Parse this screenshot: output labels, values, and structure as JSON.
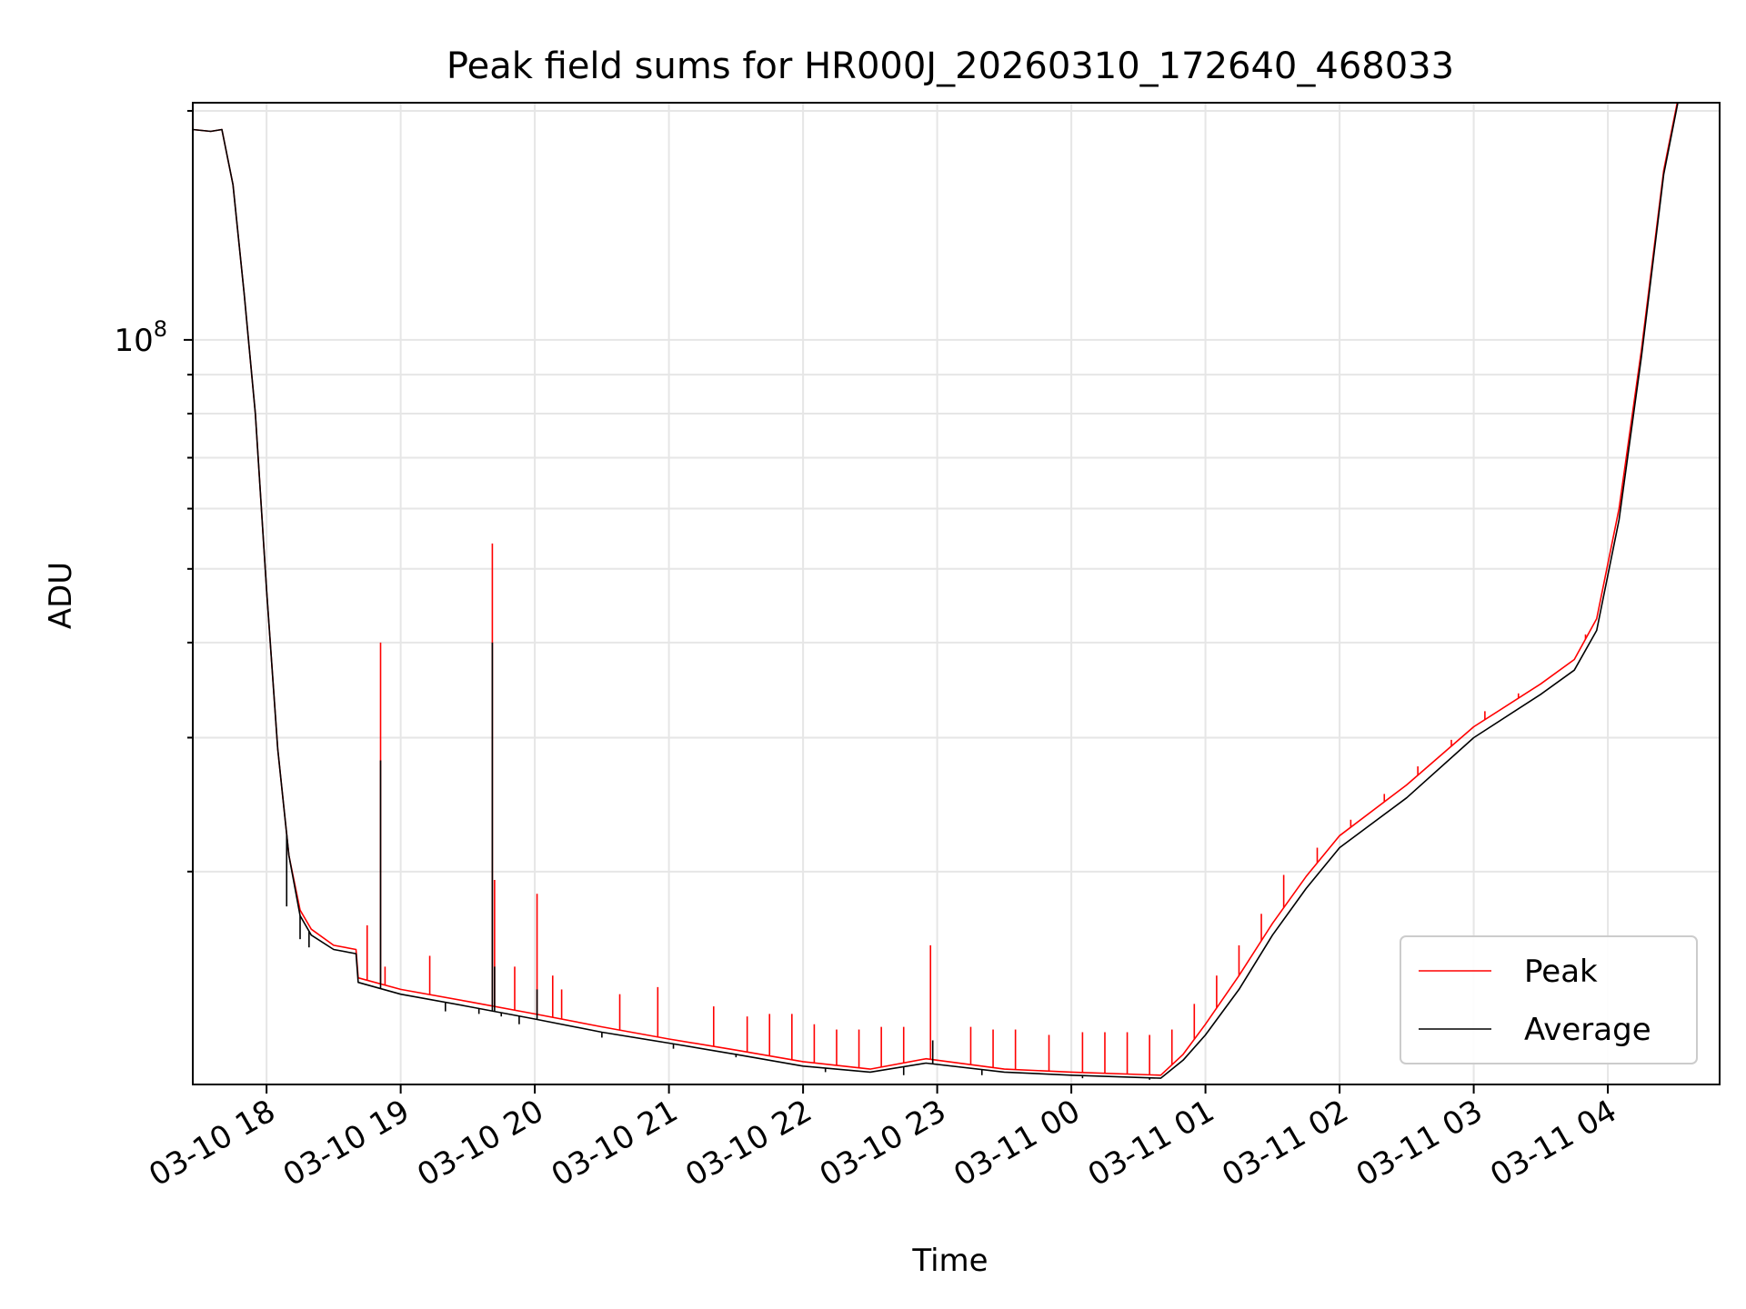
{
  "chart_data": {
    "type": "line",
    "title": "Peak field sums for HR000J_20260310_172640_468033",
    "xlabel": "Time",
    "ylabel": "ADU",
    "yscale": "log",
    "grid": true,
    "legend_position": "lower right",
    "x_ticks": [
      {
        "time": "2026-03-10 18:00",
        "label": "03-10 18"
      },
      {
        "time": "2026-03-10 19:00",
        "label": "03-10 19"
      },
      {
        "time": "2026-03-10 20:00",
        "label": "03-10 20"
      },
      {
        "time": "2026-03-10 21:00",
        "label": "03-10 21"
      },
      {
        "time": "2026-03-10 22:00",
        "label": "03-10 22"
      },
      {
        "time": "2026-03-10 23:00",
        "label": "03-10 23"
      },
      {
        "time": "2026-03-11 00:00",
        "label": "03-11 00"
      },
      {
        "time": "2026-03-11 01:00",
        "label": "03-11 01"
      },
      {
        "time": "2026-03-11 02:00",
        "label": "03-11 02"
      },
      {
        "time": "2026-03-11 03:00",
        "label": "03-11 03"
      },
      {
        "time": "2026-03-11 04:00",
        "label": "03-11 04"
      }
    ],
    "y_major_tick": {
      "value": 100000000,
      "base": "10",
      "exp": "8"
    },
    "xlim": [
      "2026-03-10 17:27",
      "2026-03-11 04:50"
    ],
    "ylim": [
      10500000,
      205000000
    ],
    "series": [
      {
        "name": "Average",
        "color": "#000000",
        "points": [
          [
            "2026-03-10 17:27",
            189000000
          ],
          [
            "2026-03-10 17:35",
            188000000
          ],
          [
            "2026-03-10 17:40",
            189000000
          ],
          [
            "2026-03-10 17:45",
            160000000
          ],
          [
            "2026-03-10 17:50",
            115000000
          ],
          [
            "2026-03-10 17:55",
            80000000
          ],
          [
            "2026-03-10 18:00",
            47000000
          ],
          [
            "2026-03-10 18:05",
            29000000
          ],
          [
            "2026-03-10 18:10",
            21000000
          ],
          [
            "2026-03-10 18:15",
            17500000
          ],
          [
            "2026-03-10 18:20",
            16500000
          ],
          [
            "2026-03-10 18:30",
            15800000
          ],
          [
            "2026-03-10 18:40",
            15600000
          ],
          [
            "2026-03-10 18:41",
            14300000
          ],
          [
            "2026-03-10 19:00",
            13800000
          ],
          [
            "2026-03-10 19:30",
            13300000
          ],
          [
            "2026-03-10 20:00",
            12800000
          ],
          [
            "2026-03-10 20:30",
            12300000
          ],
          [
            "2026-03-10 21:00",
            11900000
          ],
          [
            "2026-03-10 21:30",
            11500000
          ],
          [
            "2026-03-10 22:00",
            11100000
          ],
          [
            "2026-03-10 22:30",
            10900000
          ],
          [
            "2026-03-10 22:55",
            11200000
          ],
          [
            "2026-03-10 23:30",
            10900000
          ],
          [
            "2026-03-11 00:00",
            10800000
          ],
          [
            "2026-03-11 00:40",
            10700000
          ],
          [
            "2026-03-11 00:50",
            11300000
          ],
          [
            "2026-03-11 01:00",
            12200000
          ],
          [
            "2026-03-11 01:15",
            14000000
          ],
          [
            "2026-03-11 01:30",
            16500000
          ],
          [
            "2026-03-11 01:45",
            19000000
          ],
          [
            "2026-03-11 02:00",
            21500000
          ],
          [
            "2026-03-11 02:30",
            25000000
          ],
          [
            "2026-03-11 03:00",
            30000000
          ],
          [
            "2026-03-11 03:30",
            34200000
          ],
          [
            "2026-03-11 03:45",
            36800000
          ],
          [
            "2026-03-11 03:55",
            41500000
          ],
          [
            "2026-03-11 04:05",
            58000000
          ],
          [
            "2026-03-11 04:15",
            95000000
          ],
          [
            "2026-03-11 04:25",
            165000000
          ],
          [
            "2026-03-11 04:32",
            210000000
          ]
        ],
        "spikes": [
          [
            "2026-03-10 18:09",
            18000000
          ],
          [
            "2026-03-10 18:15",
            16300000
          ],
          [
            "2026-03-10 18:19",
            15900000
          ],
          [
            "2026-03-10 18:51",
            28000000
          ],
          [
            "2026-03-10 19:20",
            13100000
          ],
          [
            "2026-03-10 19:35",
            13000000
          ],
          [
            "2026-03-10 19:41",
            40000000
          ],
          [
            "2026-03-10 19:42",
            15000000
          ],
          [
            "2026-03-10 19:45",
            12900000
          ],
          [
            "2026-03-10 19:53",
            12600000
          ],
          [
            "2026-03-10 20:01",
            14000000
          ],
          [
            "2026-03-10 20:30",
            12100000
          ],
          [
            "2026-03-10 21:02",
            11700000
          ],
          [
            "2026-03-10 21:30",
            11400000
          ],
          [
            "2026-03-10 22:10",
            10900000
          ],
          [
            "2026-03-10 22:45",
            10800000
          ],
          [
            "2026-03-10 22:58",
            12000000
          ],
          [
            "2026-03-10 23:20",
            10800000
          ],
          [
            "2026-03-11 00:05",
            10700000
          ],
          [
            "2026-03-11 00:35",
            10650000
          ]
        ]
      },
      {
        "name": "Peak",
        "color": "#ff0000",
        "points": [
          [
            "2026-03-10 17:27",
            189000000
          ],
          [
            "2026-03-10 17:35",
            188000000
          ],
          [
            "2026-03-10 17:40",
            189000000
          ],
          [
            "2026-03-10 17:45",
            160000000
          ],
          [
            "2026-03-10 17:50",
            115000000
          ],
          [
            "2026-03-10 17:55",
            80000000
          ],
          [
            "2026-03-10 18:00",
            47000000
          ],
          [
            "2026-03-10 18:05",
            29000000
          ],
          [
            "2026-03-10 18:10",
            21000000
          ],
          [
            "2026-03-10 18:15",
            17800000
          ],
          [
            "2026-03-10 18:20",
            16800000
          ],
          [
            "2026-03-10 18:30",
            16000000
          ],
          [
            "2026-03-10 18:40",
            15800000
          ],
          [
            "2026-03-10 18:41",
            14500000
          ],
          [
            "2026-03-10 19:00",
            14000000
          ],
          [
            "2026-03-10 19:30",
            13500000
          ],
          [
            "2026-03-10 20:00",
            13000000
          ],
          [
            "2026-03-10 20:30",
            12500000
          ],
          [
            "2026-03-10 21:00",
            12050000
          ],
          [
            "2026-03-10 21:30",
            11650000
          ],
          [
            "2026-03-10 22:00",
            11250000
          ],
          [
            "2026-03-10 22:30",
            11000000
          ],
          [
            "2026-03-10 22:55",
            11350000
          ],
          [
            "2026-03-10 23:30",
            11000000
          ],
          [
            "2026-03-11 00:00",
            10900000
          ],
          [
            "2026-03-11 00:40",
            10800000
          ],
          [
            "2026-03-11 00:50",
            11500000
          ],
          [
            "2026-03-11 01:00",
            12600000
          ],
          [
            "2026-03-11 01:15",
            14600000
          ],
          [
            "2026-03-11 01:30",
            17100000
          ],
          [
            "2026-03-11 01:45",
            19700000
          ],
          [
            "2026-03-11 02:00",
            22300000
          ],
          [
            "2026-03-11 02:30",
            26000000
          ],
          [
            "2026-03-11 03:00",
            31000000
          ],
          [
            "2026-03-11 03:30",
            35300000
          ],
          [
            "2026-03-11 03:45",
            38000000
          ],
          [
            "2026-03-11 03:55",
            43000000
          ],
          [
            "2026-03-11 04:05",
            60000000
          ],
          [
            "2026-03-11 04:15",
            97000000
          ],
          [
            "2026-03-11 04:25",
            167000000
          ],
          [
            "2026-03-11 04:32",
            212000000
          ]
        ],
        "spikes": [
          [
            "2026-03-10 18:45",
            17000000
          ],
          [
            "2026-03-10 18:51",
            40000000
          ],
          [
            "2026-03-10 18:53",
            15000000
          ],
          [
            "2026-03-10 19:13",
            15500000
          ],
          [
            "2026-03-10 19:41",
            54000000
          ],
          [
            "2026-03-10 19:42",
            19500000
          ],
          [
            "2026-03-10 19:51",
            15000000
          ],
          [
            "2026-03-10 20:01",
            18700000
          ],
          [
            "2026-03-10 20:08",
            14600000
          ],
          [
            "2026-03-10 20:12",
            14000000
          ],
          [
            "2026-03-10 20:38",
            13800000
          ],
          [
            "2026-03-10 20:55",
            14100000
          ],
          [
            "2026-03-10 21:20",
            13300000
          ],
          [
            "2026-03-10 21:35",
            12900000
          ],
          [
            "2026-03-10 21:45",
            13000000
          ],
          [
            "2026-03-10 21:55",
            13000000
          ],
          [
            "2026-03-10 22:05",
            12600000
          ],
          [
            "2026-03-10 22:15",
            12400000
          ],
          [
            "2026-03-10 22:25",
            12400000
          ],
          [
            "2026-03-10 22:35",
            12500000
          ],
          [
            "2026-03-10 22:45",
            12500000
          ],
          [
            "2026-03-10 22:57",
            16000000
          ],
          [
            "2026-03-10 23:15",
            12500000
          ],
          [
            "2026-03-10 23:25",
            12400000
          ],
          [
            "2026-03-10 23:35",
            12400000
          ],
          [
            "2026-03-10 23:50",
            12200000
          ],
          [
            "2026-03-11 00:05",
            12300000
          ],
          [
            "2026-03-11 00:15",
            12300000
          ],
          [
            "2026-03-11 00:25",
            12300000
          ],
          [
            "2026-03-11 00:35",
            12200000
          ],
          [
            "2026-03-11 00:45",
            12400000
          ],
          [
            "2026-03-11 00:55",
            13400000
          ],
          [
            "2026-03-11 01:05",
            14600000
          ],
          [
            "2026-03-11 01:15",
            16000000
          ],
          [
            "2026-03-11 01:25",
            17600000
          ],
          [
            "2026-03-11 01:35",
            19800000
          ],
          [
            "2026-03-11 01:50",
            21500000
          ],
          [
            "2026-03-11 02:05",
            23400000
          ],
          [
            "2026-03-11 02:20",
            25300000
          ],
          [
            "2026-03-11 02:35",
            27500000
          ],
          [
            "2026-03-11 02:50",
            29800000
          ],
          [
            "2026-03-11 03:05",
            32500000
          ],
          [
            "2026-03-11 03:20",
            34300000
          ],
          [
            "2026-03-11 03:35",
            36200000
          ],
          [
            "2026-03-11 03:50",
            41000000
          ]
        ]
      }
    ]
  }
}
